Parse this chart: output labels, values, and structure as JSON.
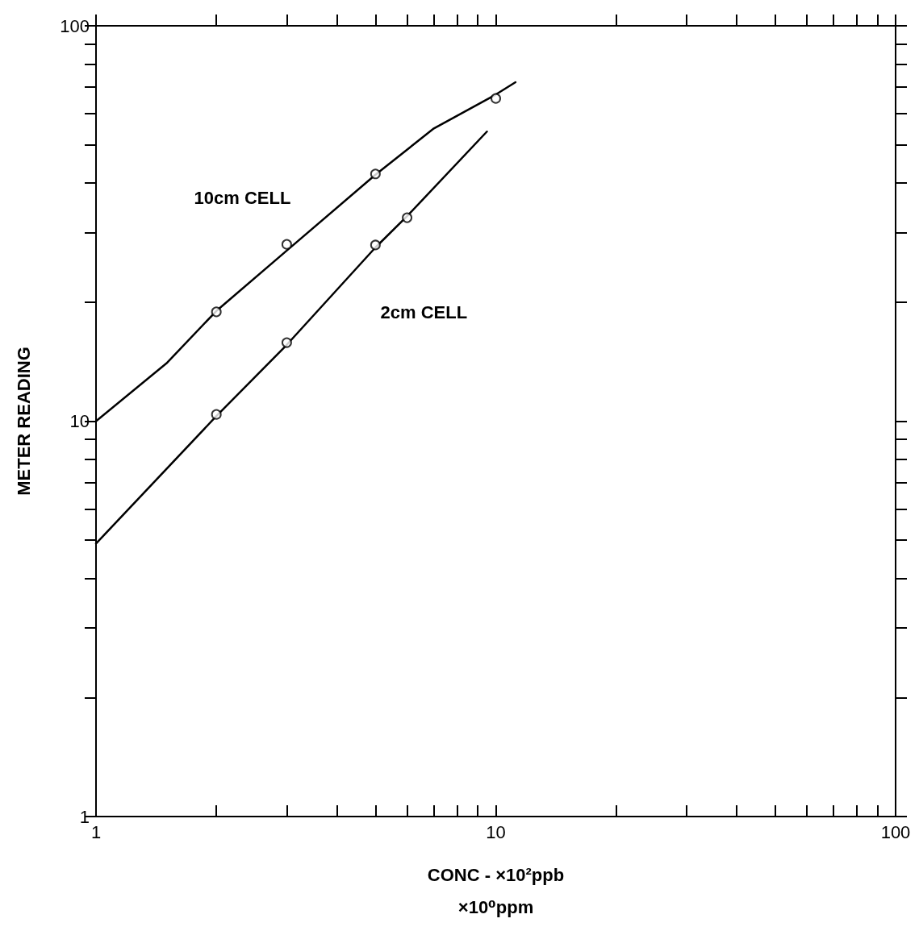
{
  "chart_data": {
    "type": "scatter",
    "xlabel": "CONC - ×10²ppb\n×10⁰ppm",
    "ylabel": "METER READING",
    "log": "xy",
    "grid": false,
    "legend": false,
    "xlim": [
      1,
      100
    ],
    "xticks": [
      1,
      {
        "value": 2,
        "label": null
      },
      {
        "value": 3,
        "label": null
      },
      {
        "value": 4,
        "label": null
      },
      {
        "value": 5,
        "label": null
      },
      {
        "value": 6,
        "label": null
      },
      {
        "value": 7,
        "label": null
      },
      {
        "value": 8,
        "label": null
      },
      {
        "value": 9,
        "label": null
      },
      10,
      {
        "value": 20,
        "label": null
      },
      {
        "value": 30,
        "label": null
      },
      {
        "value": 40,
        "label": null
      },
      {
        "value": 50,
        "label": null
      },
      {
        "value": 60,
        "label": null
      },
      {
        "value": 70,
        "label": null
      },
      {
        "value": 80,
        "label": null
      },
      {
        "value": 90,
        "label": null
      },
      100
    ],
    "ylim": [
      1,
      100
    ],
    "yticks": [
      1,
      {
        "value": 2,
        "label": null
      },
      {
        "value": 3,
        "label": null
      },
      {
        "value": 4,
        "label": null
      },
      {
        "value": 5,
        "label": null
      },
      {
        "value": 6,
        "label": null
      },
      {
        "value": 7,
        "label": null
      },
      {
        "value": 8,
        "label": null
      },
      {
        "value": 9,
        "label": null
      },
      10,
      {
        "value": 20,
        "label": null
      },
      {
        "value": 30,
        "label": null
      },
      {
        "value": 40,
        "label": null
      },
      {
        "value": 50,
        "label": null
      },
      {
        "value": 60,
        "label": null
      },
      {
        "value": 70,
        "label": null
      },
      {
        "value": 80,
        "label": null
      },
      {
        "value": 90,
        "label": null
      },
      100
    ],
    "series": [
      {
        "type": "line",
        "name": "10cm CELL",
        "color": "#000000",
        "marker": "none",
        "line_style": "solid",
        "x": [
          1,
          1.5,
          2,
          3,
          5,
          7,
          10,
          11.2
        ],
        "values": [
          10,
          14,
          19,
          27,
          42,
          55,
          67,
          72
        ]
      },
      {
        "type": "line",
        "name": "2cm CELL",
        "color": "#000000",
        "marker": "none",
        "line_style": "solid",
        "x": [
          1,
          2,
          3,
          5,
          6,
          9.5
        ],
        "values": [
          4.9,
          10.3,
          15.6,
          27.5,
          33,
          54
        ]
      },
      {
        "color": "#000000",
        "marker": "circle",
        "x": [
          2,
          3,
          5,
          10
        ],
        "values": [
          18.9,
          28,
          42.2,
          65.5
        ]
      },
      {
        "color": "#000000",
        "marker": "circle",
        "x": [
          2,
          3,
          5,
          6
        ],
        "values": [
          10.4,
          15.8,
          27.9,
          32.7
        ]
      }
    ]
  }
}
